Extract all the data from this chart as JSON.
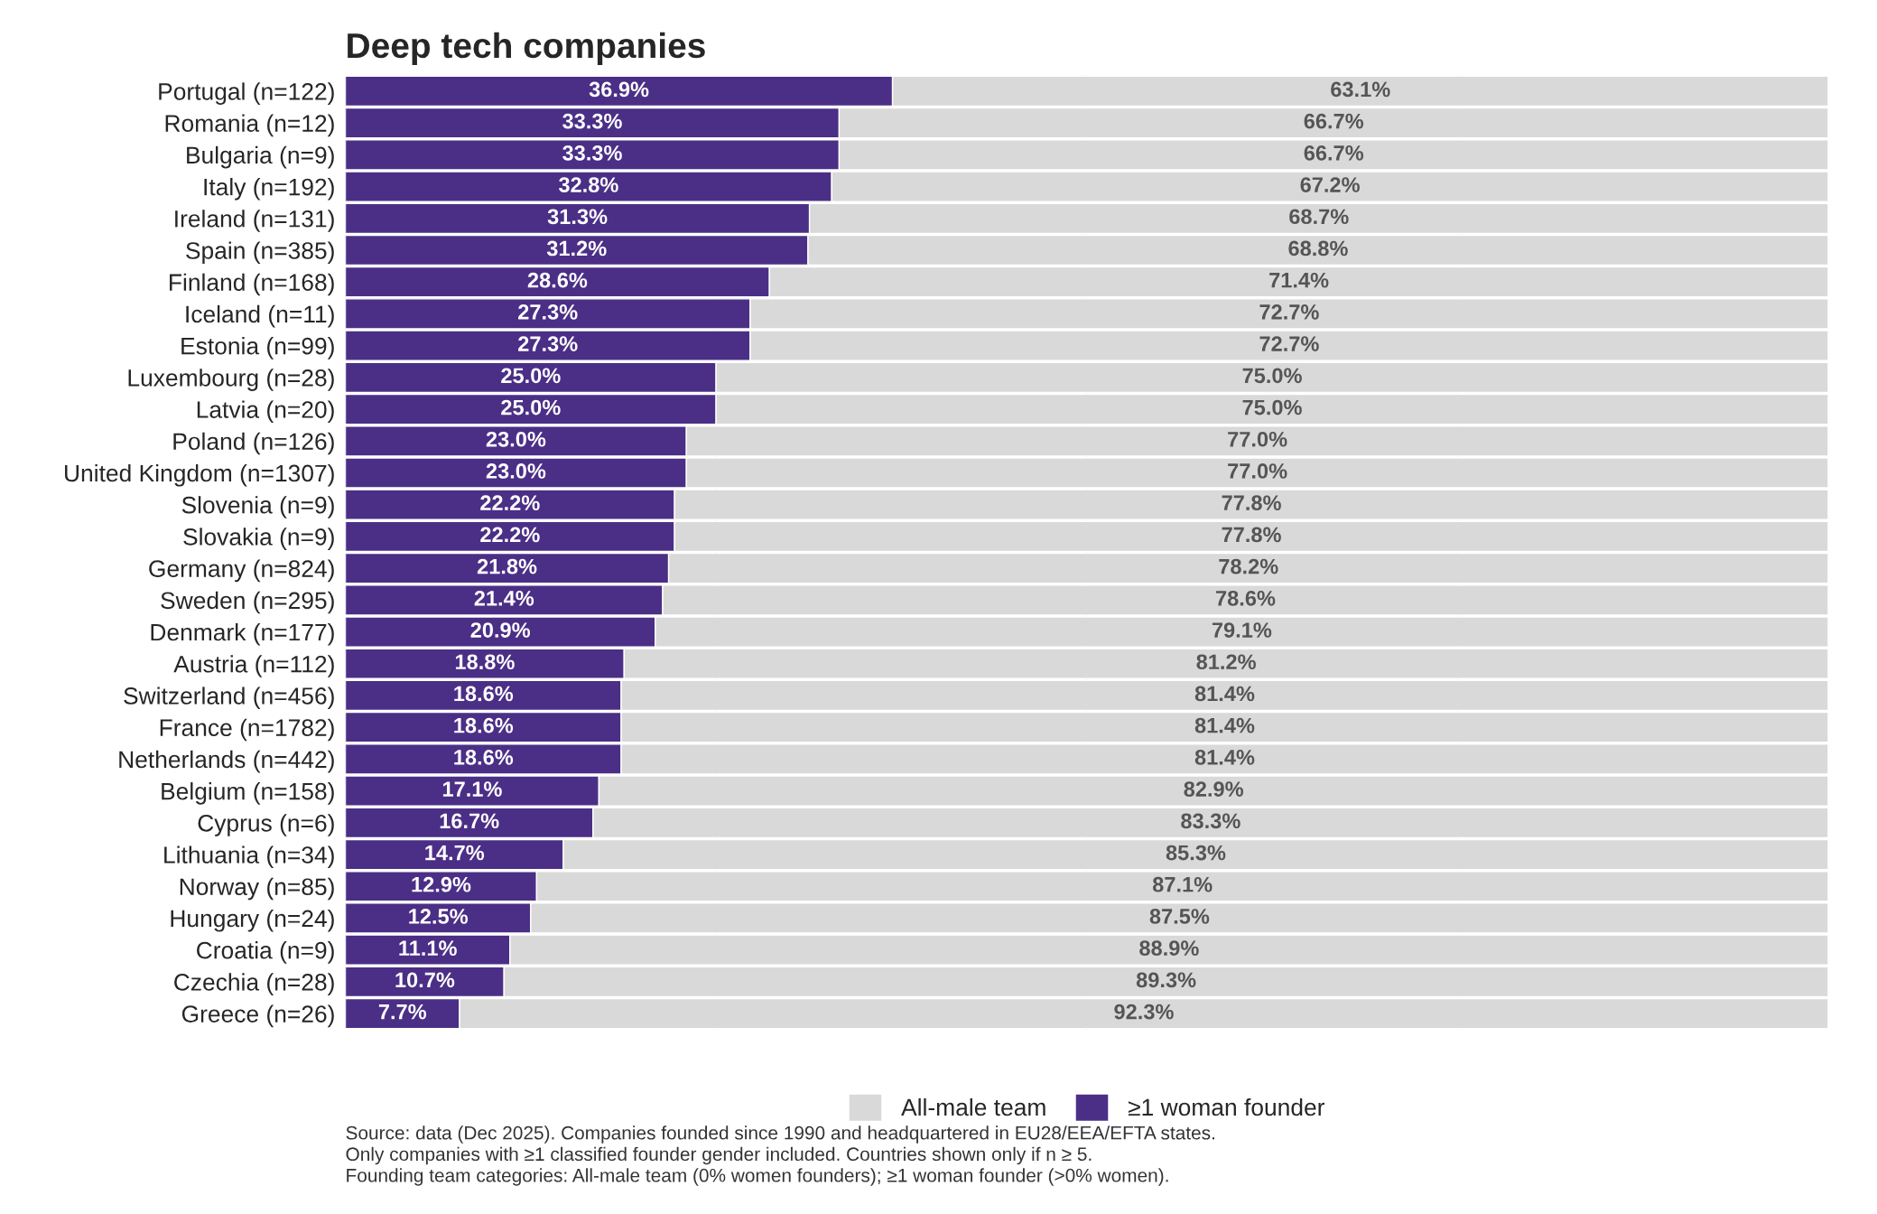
{
  "chart_data": {
    "type": "bar",
    "orientation": "horizontal",
    "stacked": true,
    "title": "Deep tech companies",
    "categories": [
      "Portugal (n=122)",
      "Romania (n=12)",
      "Bulgaria (n=9)",
      "Italy (n=192)",
      "Ireland (n=131)",
      "Spain (n=385)",
      "Finland (n=168)",
      "Iceland (n=11)",
      "Estonia (n=99)",
      "Luxembourg (n=28)",
      "Latvia (n=20)",
      "Poland (n=126)",
      "United Kingdom (n=1307)",
      "Slovenia (n=9)",
      "Slovakia (n=9)",
      "Germany (n=824)",
      "Sweden (n=295)",
      "Denmark (n=177)",
      "Austria (n=112)",
      "Switzerland (n=456)",
      "France (n=1782)",
      "Netherlands (n=442)",
      "Belgium (n=158)",
      "Cyprus (n=6)",
      "Lithuania (n=34)",
      "Norway (n=85)",
      "Hungary (n=24)",
      "Croatia (n=9)",
      "Czechia (n=28)",
      "Greece (n=26)"
    ],
    "series": [
      {
        "name": "≥1 woman founder",
        "color": "#4b2f86",
        "values": [
          36.9,
          33.3,
          33.3,
          32.8,
          31.3,
          31.2,
          28.6,
          27.3,
          27.3,
          25.0,
          25.0,
          23.0,
          23.0,
          22.2,
          22.2,
          21.8,
          21.4,
          20.9,
          18.8,
          18.6,
          18.6,
          18.6,
          17.1,
          16.7,
          14.7,
          12.9,
          12.5,
          11.1,
          10.7,
          7.7
        ],
        "value_labels": [
          "36.9%",
          "33.3%",
          "33.3%",
          "32.8%",
          "31.3%",
          "31.2%",
          "28.6%",
          "27.3%",
          "27.3%",
          "25.0%",
          "25.0%",
          "23.0%",
          "23.0%",
          "22.2%",
          "22.2%",
          "21.8%",
          "21.4%",
          "20.9%",
          "18.8%",
          "18.6%",
          "18.6%",
          "18.6%",
          "17.1%",
          "16.7%",
          "14.7%",
          "12.9%",
          "12.5%",
          "11.1%",
          "10.7%",
          "7.7%"
        ]
      },
      {
        "name": "All-male team",
        "color": "#d9d9d9",
        "values": [
          63.1,
          66.7,
          66.7,
          67.2,
          68.7,
          68.8,
          71.4,
          72.7,
          72.7,
          75.0,
          75.0,
          77.0,
          77.0,
          77.8,
          77.8,
          78.2,
          78.6,
          79.1,
          81.2,
          81.4,
          81.4,
          81.4,
          82.9,
          83.3,
          85.3,
          87.1,
          87.5,
          88.9,
          89.3,
          92.3
        ],
        "value_labels": [
          "63.1%",
          "66.7%",
          "66.7%",
          "67.2%",
          "68.7%",
          "68.8%",
          "71.4%",
          "72.7%",
          "72.7%",
          "75.0%",
          "75.0%",
          "77.0%",
          "77.0%",
          "77.8%",
          "77.8%",
          "78.2%",
          "78.6%",
          "79.1%",
          "81.2%",
          "81.4%",
          "81.4%",
          "81.4%",
          "82.9%",
          "83.3%",
          "85.3%",
          "87.1%",
          "87.5%",
          "88.9%",
          "89.3%",
          "92.3%"
        ]
      }
    ],
    "xlim": [
      0,
      100
    ],
    "xticks": [
      {
        "value": 25,
        "label": null
      },
      {
        "value": 50,
        "label": null
      },
      {
        "value": 75,
        "label": null
      }
    ],
    "grid": "x",
    "legend": "bottom",
    "tick_labels": "y",
    "annotations": [
      "Source: data (Dec 2025). Companies founded since 1990 and headquartered in EU28/EEA/EFTA states.",
      "Only companies with ≥1 classified founder gender included. Countries shown only if n ≥ 5.",
      "Founding team categories: All-male team (0% women founders); ≥1 woman founder (>0% women)."
    ]
  }
}
